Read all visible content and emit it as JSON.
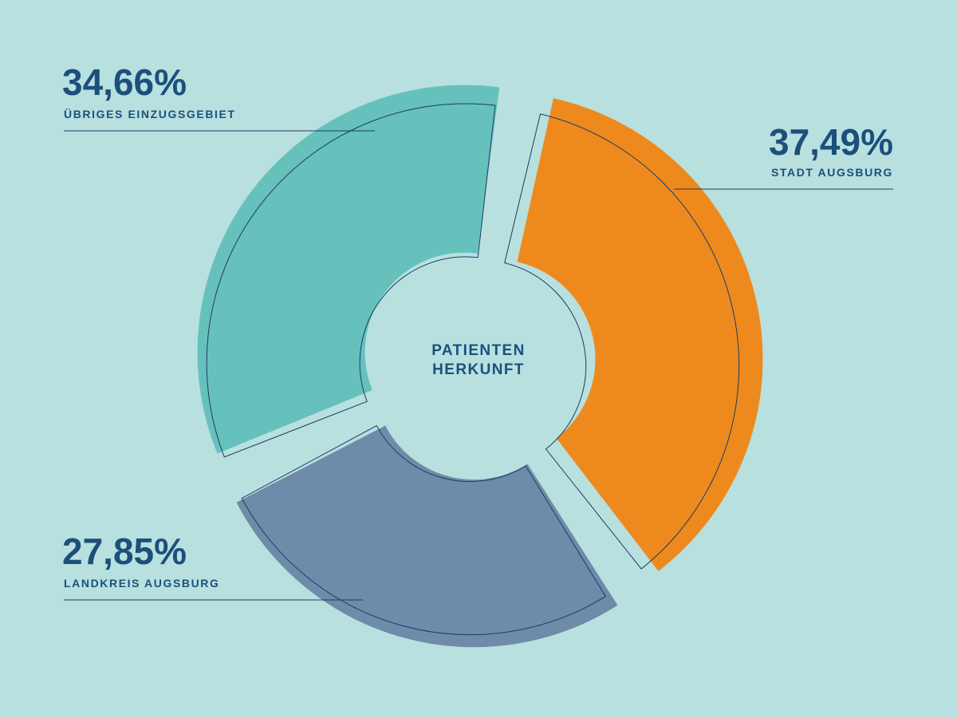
{
  "chart_data": {
    "type": "pie",
    "title": "PATIENTEN HERKUNFT",
    "title_lines": [
      "PATIENTEN",
      "HERKUNFT"
    ],
    "slices": [
      {
        "label": "STADT AUGSBURG",
        "value": 37.49,
        "value_label": "37,49%",
        "color": "#ee8a1d"
      },
      {
        "label": "LANDKREIS AUGSBURG",
        "value": 27.85,
        "value_label": "27,85%",
        "color": "#6e8ba9"
      },
      {
        "label": "ÜBRIGES EINZUGSGEBIET",
        "value": 34.66,
        "value_label": "34,66%",
        "color": "#66c1bc"
      }
    ],
    "outline_color": "#1d3c63",
    "label_color": "#1d4f7c",
    "background": "#b8e0df"
  }
}
